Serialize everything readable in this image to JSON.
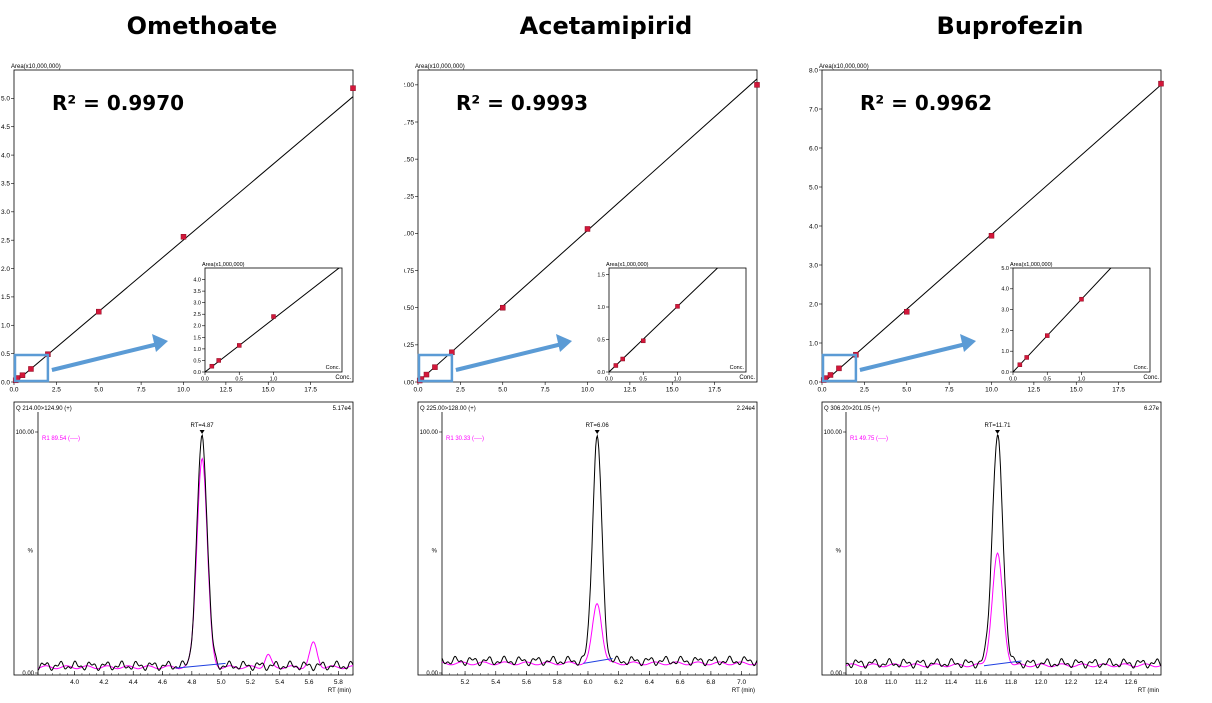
{
  "colors": {
    "point": "#d3173a",
    "highlight": "#5b9bd5",
    "trace_main": "#000000",
    "trace_ref": "#ff00ff",
    "baseline": "#1f3fe0"
  },
  "chart_data": [
    {
      "type": "scatter",
      "title": "Omethoate",
      "r2_label": "R² = 0.9970",
      "calibration": {
        "ylabel": "Area(x10,000,000)",
        "xlabel": "Conc.",
        "xlim": [
          0,
          20
        ],
        "ylim": [
          0,
          5.5
        ],
        "xticks": [
          "0.0",
          "2.5",
          "5.0",
          "7.5",
          "10.0",
          "12.5",
          "15.0",
          "17.5"
        ],
        "xtick_values": [
          0,
          2.5,
          5,
          7.5,
          10,
          12.5,
          15,
          17.5
        ],
        "yticks": [
          "0.0",
          "0.5",
          "1.0",
          "1.5",
          "2.0",
          "2.5",
          "3.0",
          "3.5",
          "4.0",
          "4.5",
          "5.0"
        ],
        "ytick_values": [
          0,
          0.5,
          1,
          1.5,
          2,
          2.5,
          3,
          3.5,
          4,
          4.5,
          5
        ],
        "points": [
          [
            0.1,
            0.03
          ],
          [
            0.2,
            0.07
          ],
          [
            0.5,
            0.12
          ],
          [
            1,
            0.23
          ],
          [
            2,
            0.49
          ],
          [
            5,
            1.24
          ],
          [
            10,
            2.56
          ],
          [
            20,
            5.18
          ]
        ],
        "fit_line": [
          [
            0,
            -0.02
          ],
          [
            20,
            5.03
          ]
        ],
        "inset": {
          "ylabel": "Area(x1,000,000)",
          "xlabel": "Conc.",
          "xlim": [
            0,
            2
          ],
          "ylim": [
            0,
            4.5
          ],
          "xticks": [
            "0.0",
            "0.5",
            "1.0"
          ],
          "xtick_values": [
            0,
            0.5,
            1
          ],
          "yticks": [
            "0.0",
            "0.5",
            "1.0",
            "1.5",
            "2.0",
            "2.5",
            "3.0",
            "3.5",
            "4.0"
          ],
          "ytick_values": [
            0,
            0.5,
            1,
            1.5,
            2,
            2.5,
            3,
            3.5,
            4
          ],
          "points": [
            [
              0.1,
              0.25
            ],
            [
              0.2,
              0.5
            ],
            [
              0.5,
              1.15
            ],
            [
              1,
              2.4
            ]
          ],
          "fit_line": [
            [
              0,
              0
            ],
            [
              2,
              4.6
            ]
          ]
        }
      },
      "chromatogram": {
        "header": "Q 214.00>124.90 (+)",
        "max_intensity": "5.17e4",
        "ref_label": "R1 89.54 (----)",
        "rt_label": "RT=4.87",
        "ylabel": "%",
        "xlabel": "RT (min)",
        "xlim": [
          3.75,
          5.9
        ],
        "ylim": [
          0,
          100
        ],
        "xticks": [
          "4.0",
          "4.2",
          "4.4",
          "4.6",
          "4.8",
          "5.0",
          "5.2",
          "5.4",
          "5.6",
          "5.8"
        ],
        "xtick_values": [
          4.0,
          4.2,
          4.4,
          4.6,
          4.8,
          5.0,
          5.2,
          5.4,
          5.6,
          5.8
        ],
        "yticks": [
          "0.00",
          "100.00"
        ],
        "ytick_values": [
          0,
          100
        ],
        "rt": 4.87,
        "main_peak_height": 98,
        "ref_peak_height": 90,
        "peak_width": 0.035,
        "baseline_level": 3,
        "minor_ref_peaks": [
          [
            5.32,
            5,
            0.02
          ],
          [
            5.63,
            10,
            0.025
          ]
        ],
        "integration_start": 4.69,
        "integration_end": 5.03
      }
    },
    {
      "type": "scatter",
      "title": "Acetamipirid",
      "r2_label": "R² = 0.9993",
      "calibration": {
        "ylabel": "Area(x10,000,000)",
        "xlabel": "Conc.",
        "xlim": [
          0,
          20
        ],
        "ylim": [
          0,
          2.1
        ],
        "xticks": [
          "0.0",
          "2.5",
          "5.0",
          "7.5",
          "10.0",
          "12.5",
          "15.0",
          "17.5"
        ],
        "xtick_values": [
          0,
          2.5,
          5,
          7.5,
          10,
          12.5,
          15,
          17.5
        ],
        "yticks": [
          "0.00",
          "0.25",
          "0.50",
          "0.75",
          "1.00",
          "1.25",
          "1.50",
          "1.75",
          "2.00"
        ],
        "ytick_values": [
          0,
          0.25,
          0.5,
          0.75,
          1,
          1.25,
          1.5,
          1.75,
          2
        ],
        "points": [
          [
            0.1,
            0.01
          ],
          [
            0.2,
            0.02
          ],
          [
            0.5,
            0.05
          ],
          [
            1,
            0.1
          ],
          [
            2,
            0.2
          ],
          [
            5,
            0.5
          ],
          [
            10,
            1.03
          ],
          [
            20,
            2.0
          ]
        ],
        "fit_line": [
          [
            0,
            0
          ],
          [
            20,
            2.04
          ]
        ],
        "inset": {
          "ylabel": "Area(x1,000,000)",
          "xlabel": "Conc.",
          "xlim": [
            0,
            2
          ],
          "ylim": [
            0,
            1.6
          ],
          "xticks": [
            "0.0",
            "0.5",
            "1.0"
          ],
          "xtick_values": [
            0,
            0.5,
            1
          ],
          "yticks": [
            "0.0",
            "0.5",
            "1.0",
            "1.5"
          ],
          "ytick_values": [
            0,
            0.5,
            1,
            1.5
          ],
          "points": [
            [
              0.1,
              0.1
            ],
            [
              0.2,
              0.2
            ],
            [
              0.5,
              0.48
            ],
            [
              1,
              1.01
            ]
          ],
          "fit_line": [
            [
              0,
              0
            ],
            [
              2,
              2.02
            ]
          ]
        }
      },
      "chromatogram": {
        "header": "Q 225.00>128.00 (+)",
        "max_intensity": "2.24e4",
        "ref_label": "R1 30.33 (----)",
        "rt_label": "RT=6.06",
        "ylabel": "%",
        "xlabel": "RT (min)",
        "xlim": [
          5.05,
          7.1
        ],
        "ylim": [
          0,
          100
        ],
        "xticks": [
          "5.2",
          "5.4",
          "5.6",
          "5.8",
          "6.0",
          "6.2",
          "6.4",
          "6.6",
          "6.8",
          "7.0"
        ],
        "xtick_values": [
          5.2,
          5.4,
          5.6,
          5.8,
          6.0,
          6.2,
          6.4,
          6.6,
          6.8,
          7.0
        ],
        "yticks": [
          "0.00",
          "100.00"
        ],
        "ytick_values": [
          0,
          100
        ],
        "rt": 6.06,
        "main_peak_height": 98,
        "ref_peak_height": 30,
        "peak_width": 0.03,
        "baseline_level": 5,
        "minor_ref_peaks": [],
        "integration_start": 5.97,
        "integration_end": 6.16
      }
    },
    {
      "type": "scatter",
      "title": "Buprofezin",
      "r2_label": "R² = 0.9962",
      "calibration": {
        "ylabel": "Area(x10,000,000)",
        "xlabel": "Conc.",
        "xlim": [
          0,
          20
        ],
        "ylim": [
          0,
          8.0
        ],
        "xticks": [
          "0.0",
          "2.5",
          "5.0",
          "7.5",
          "10.0",
          "12.5",
          "15.0",
          "17.5"
        ],
        "xtick_values": [
          0,
          2.5,
          5,
          7.5,
          10,
          12.5,
          15,
          17.5
        ],
        "yticks": [
          "0.0",
          "1.0",
          "2.0",
          "3.0",
          "4.0",
          "5.0",
          "6.0",
          "7.0",
          "8.0"
        ],
        "ytick_values": [
          0,
          1,
          2,
          3,
          4,
          5,
          6,
          7,
          8
        ],
        "points": [
          [
            0.1,
            0.05
          ],
          [
            0.2,
            0.1
          ],
          [
            0.5,
            0.18
          ],
          [
            1,
            0.35
          ],
          [
            2,
            0.7
          ],
          [
            5,
            1.8
          ],
          [
            10,
            3.75
          ],
          [
            20,
            7.65
          ]
        ],
        "fit_line": [
          [
            0,
            -0.05
          ],
          [
            20,
            7.62
          ]
        ],
        "inset": {
          "ylabel": "Area(x1,000,000)",
          "xlabel": "Conc.",
          "xlim": [
            0,
            2
          ],
          "ylim": [
            0,
            5.0
          ],
          "xticks": [
            "0.0",
            "0.5",
            "1.0"
          ],
          "xtick_values": [
            0,
            0.5,
            1
          ],
          "yticks": [
            "0.0",
            "1.0",
            "2.0",
            "3.0",
            "4.0",
            "5.0"
          ],
          "ytick_values": [
            0,
            1,
            2,
            3,
            4,
            5
          ],
          "points": [
            [
              0.1,
              0.35
            ],
            [
              0.2,
              0.7
            ],
            [
              0.5,
              1.75
            ],
            [
              1,
              3.5
            ]
          ],
          "fit_line": [
            [
              0,
              0
            ],
            [
              2,
              7.0
            ]
          ]
        }
      },
      "chromatogram": {
        "header": "Q 306.20>201.05 (+)",
        "max_intensity": "6.27e",
        "ref_label": "R1 49.75 (----)",
        "rt_label": "RT=11.71",
        "ylabel": "%",
        "xlabel": "RT (min",
        "xlim": [
          10.7,
          12.8
        ],
        "ylim": [
          0,
          100
        ],
        "xticks": [
          "10.8",
          "11.0",
          "11.2",
          "11.4",
          "11.6",
          "11.8",
          "12.0",
          "12.2",
          "12.4",
          "12.6"
        ],
        "xtick_values": [
          10.8,
          11.0,
          11.2,
          11.4,
          11.6,
          11.8,
          12.0,
          12.2,
          12.4,
          12.6
        ],
        "yticks": [
          "0.00",
          "100.00"
        ],
        "ytick_values": [
          0,
          100
        ],
        "rt": 11.71,
        "main_peak_height": 98,
        "ref_peak_height": 50,
        "peak_width": 0.035,
        "baseline_level": 4,
        "minor_ref_peaks": [],
        "integration_start": 11.62,
        "integration_end": 11.87
      }
    }
  ]
}
